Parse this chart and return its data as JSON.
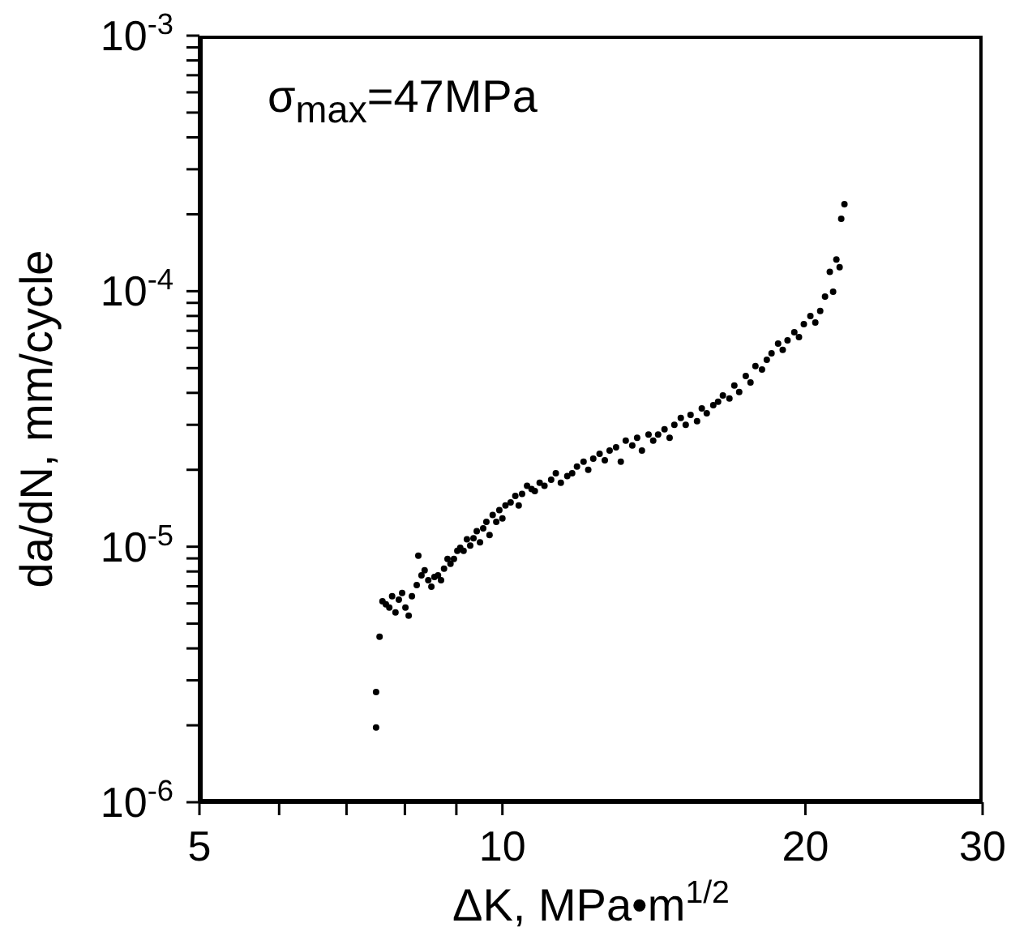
{
  "chart_data": {
    "type": "scatter",
    "xlabel": "ΔK, MPa•m$^{1/2}$",
    "ylabel": "da/dN, mm/cycle",
    "annotations": [
      "σ$_{max}$=47MPa"
    ],
    "log": "xy",
    "marker": "circle",
    "color": "#000000",
    "xlim": [
      5,
      30
    ],
    "xticks": [
      5,
      {
        "value": 6,
        "label": null
      },
      {
        "value": 7,
        "label": null
      },
      {
        "value": 8,
        "label": null
      },
      {
        "value": 9,
        "label": null
      },
      10,
      20,
      30
    ],
    "ylim": [
      1e-06,
      0.001
    ],
    "yticks": [
      {
        "value": 1e-06,
        "label": "10$^{-6}$"
      },
      {
        "value": 2e-06,
        "label": null
      },
      {
        "value": 3e-06,
        "label": null
      },
      {
        "value": 4e-06,
        "label": null
      },
      {
        "value": 5e-06,
        "label": null
      },
      {
        "value": 6e-06,
        "label": null
      },
      {
        "value": 7e-06,
        "label": null
      },
      {
        "value": 8e-06,
        "label": null
      },
      {
        "value": 9e-06,
        "label": null
      },
      {
        "value": 1e-05,
        "label": "10$^{-5}$"
      },
      {
        "value": 2e-05,
        "label": null
      },
      {
        "value": 3e-05,
        "label": null
      },
      {
        "value": 4e-05,
        "label": null
      },
      {
        "value": 5e-05,
        "label": null
      },
      {
        "value": 6e-05,
        "label": null
      },
      {
        "value": 7e-05,
        "label": null
      },
      {
        "value": 8e-05,
        "label": null
      },
      {
        "value": 9e-05,
        "label": null
      },
      {
        "value": 0.0001,
        "label": "10$^{-4}$"
      },
      {
        "value": 0.0002,
        "label": null
      },
      {
        "value": 0.0003,
        "label": null
      },
      {
        "value": 0.0004,
        "label": null
      },
      {
        "value": 0.0005,
        "label": null
      },
      {
        "value": 0.0006,
        "label": null
      },
      {
        "value": 0.0007,
        "label": null
      },
      {
        "value": 0.0008,
        "label": null
      },
      {
        "value": 0.0009,
        "label": null
      },
      {
        "value": 0.001,
        "label": "10$^{-3}$"
      }
    ],
    "x": [
      7.49,
      7.49,
      7.55,
      7.6,
      7.66,
      7.72,
      7.77,
      7.83,
      7.89,
      7.95,
      8.01,
      8.07,
      8.13,
      8.22,
      8.25,
      8.31,
      8.37,
      8.44,
      8.5,
      8.56,
      8.63,
      8.69,
      8.75,
      8.82,
      8.88,
      8.95,
      9.02,
      9.08,
      9.15,
      9.22,
      9.29,
      9.36,
      9.43,
      9.5,
      9.57,
      9.64,
      9.71,
      9.78,
      9.86,
      9.93,
      10.0,
      10.07,
      10.19,
      10.3,
      10.38,
      10.46,
      10.58,
      10.69,
      10.77,
      10.89,
      11.01,
      11.18,
      11.3,
      11.43,
      11.6,
      11.73,
      11.86,
      12.04,
      12.17,
      12.31,
      12.49,
      12.64,
      12.78,
      12.97,
      13.11,
      13.26,
      13.46,
      13.61,
      13.76,
      13.97,
      14.12,
      14.28,
      14.49,
      14.66,
      14.82,
      15.04,
      15.21,
      15.38,
      15.61,
      15.78,
      15.96,
      16.2,
      16.38,
      16.56,
      16.81,
      17.0,
      17.19,
      17.45,
      17.64,
      17.84,
      18.11,
      18.31,
      18.51,
      18.79,
      18.99,
      19.2,
      19.5,
      19.71,
      19.93,
      20.23,
      20.46,
      20.69,
      20.92,
      21.15,
      21.31,
      21.47,
      21.63,
      21.71,
      21.87
    ],
    "values": [
      1.96e-06,
      2.7e-06,
      4.44e-06,
      6.12e-06,
      5.95e-06,
      5.78e-06,
      6.4e-06,
      5.53e-06,
      6.21e-06,
      6.59e-06,
      5.78e-06,
      5.37e-06,
      6.4e-06,
      7.08e-06,
      9.22e-06,
      7.73e-06,
      8.08e-06,
      7.4e-06,
      6.98e-06,
      7.62e-06,
      7.73e-06,
      7.4e-06,
      8.2e-06,
      8.95e-06,
      8.57e-06,
      8.95e-06,
      9.63e-06,
      9.91e-06,
      9.63e-06,
      1.07e-05,
      1.01e-05,
      1.08e-05,
      1.15e-05,
      1.04e-05,
      1.18e-05,
      1.25e-05,
      1.11e-05,
      1.33e-05,
      1.25e-05,
      1.39e-05,
      1.29e-05,
      1.45e-05,
      1.49e-05,
      1.58e-05,
      1.45e-05,
      1.61e-05,
      1.73e-05,
      1.68e-05,
      1.65e-05,
      1.78e-05,
      1.73e-05,
      1.83e-05,
      1.94e-05,
      1.78e-05,
      1.89e-05,
      1.94e-05,
      2.06e-05,
      2.15e-05,
      2e-05,
      2.21e-05,
      2.31e-05,
      2.18e-05,
      2.38e-05,
      2.45e-05,
      2.15e-05,
      2.6e-05,
      2.49e-05,
      2.67e-05,
      2.38e-05,
      2.75e-05,
      2.6e-05,
      2.75e-05,
      2.88e-05,
      2.67e-05,
      3e-05,
      3.19e-05,
      3e-05,
      3.28e-05,
      3.1e-05,
      3.48e-05,
      3.33e-05,
      3.58e-05,
      3.69e-05,
      3.91e-05,
      3.8e-05,
      4.27e-05,
      4.03e-05,
      4.66e-05,
      4.39e-05,
      5.09e-05,
      4.94e-05,
      5.39e-05,
      5.71e-05,
      6.24e-05,
      5.89e-05,
      6.42e-05,
      6.91e-05,
      6.61e-05,
      7.43e-05,
      8e-05,
      7.54e-05,
      8.36e-05,
      9.53e-05,
      0.000119,
      9.96e-05,
      0.000133,
      0.000124,
      0.000192,
      0.000219
    ]
  }
}
